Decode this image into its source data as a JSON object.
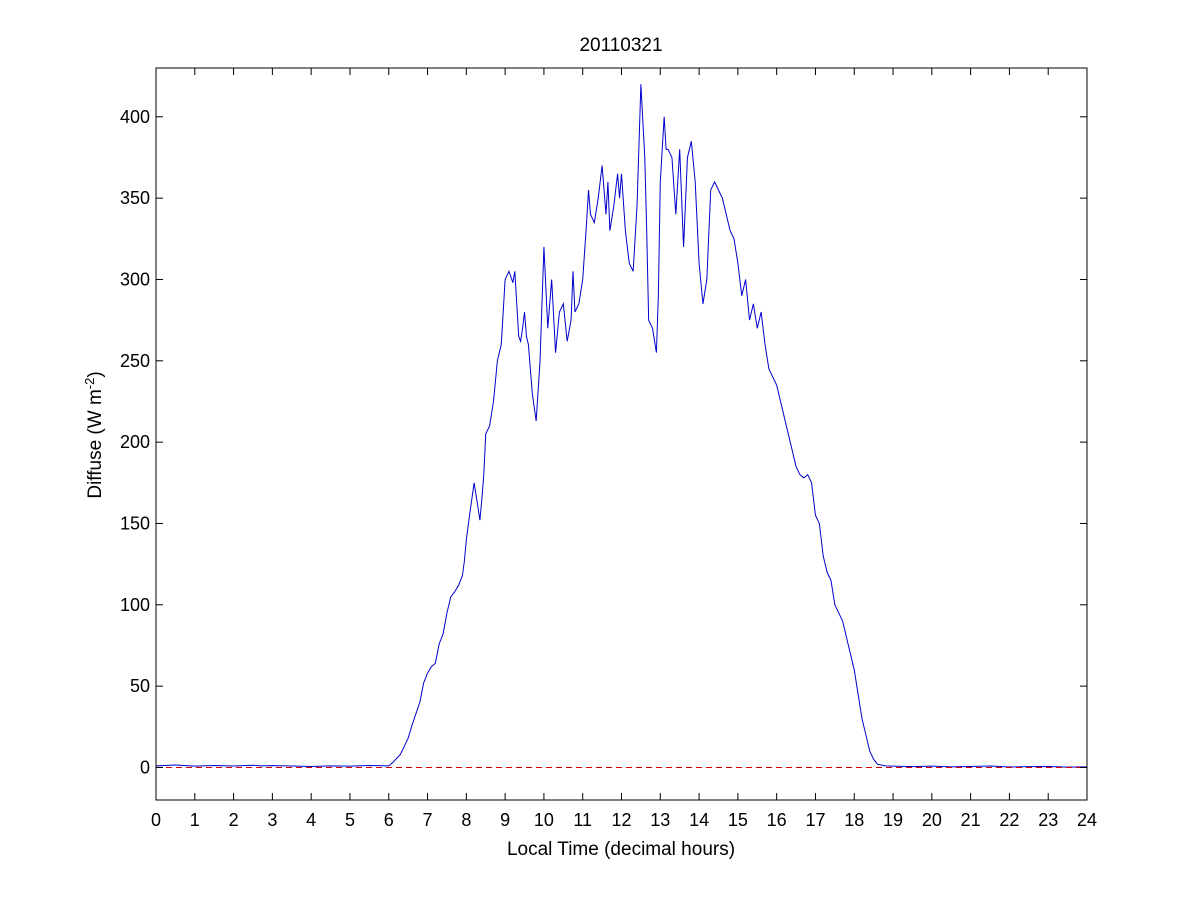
{
  "chart_data": {
    "type": "line",
    "title": "20110321",
    "xlabel": "Local Time (decimal hours)",
    "ylabel": {
      "prefix": "Diffuse (W m",
      "superscript": "-2",
      "suffix": ")"
    },
    "xlim": [
      0,
      24
    ],
    "ylim": [
      -20,
      430
    ],
    "xticks": [
      0,
      1,
      2,
      3,
      4,
      5,
      6,
      7,
      8,
      9,
      10,
      11,
      12,
      13,
      14,
      15,
      16,
      17,
      18,
      19,
      20,
      21,
      22,
      23,
      24
    ],
    "yticks": [
      0,
      50,
      100,
      150,
      200,
      250,
      300,
      350,
      400
    ],
    "grid": false,
    "legend": "none",
    "series": [
      {
        "color": "#0000cc",
        "x": [
          0,
          0.5,
          1,
          1.5,
          2,
          2.5,
          2.7,
          3,
          3.5,
          4,
          4.5,
          5,
          5.5,
          6,
          6.1,
          6.3,
          6.5,
          6.6,
          6.8,
          6.9,
          7.0,
          7.1,
          7.2,
          7.3,
          7.4,
          7.5,
          7.6,
          7.7,
          7.8,
          7.9,
          7.95,
          8.0,
          8.1,
          8.2,
          8.3,
          8.35,
          8.4,
          8.45,
          8.5,
          8.6,
          8.7,
          8.8,
          8.9,
          9.0,
          9.1,
          9.2,
          9.25,
          9.3,
          9.35,
          9.4,
          9.45,
          9.5,
          9.55,
          9.6,
          9.7,
          9.8,
          9.9,
          10.0,
          10.1,
          10.2,
          10.3,
          10.4,
          10.5,
          10.6,
          10.7,
          10.75,
          10.8,
          10.9,
          11.0,
          11.1,
          11.15,
          11.2,
          11.3,
          11.4,
          11.5,
          11.6,
          11.65,
          11.7,
          11.8,
          11.85,
          11.9,
          11.95,
          12.0,
          12.1,
          12.2,
          12.3,
          12.4,
          12.5,
          12.6,
          12.65,
          12.7,
          12.8,
          12.9,
          12.95,
          13.0,
          13.1,
          13.15,
          13.2,
          13.3,
          13.4,
          13.5,
          13.6,
          13.7,
          13.8,
          13.9,
          14.0,
          14.1,
          14.2,
          14.3,
          14.4,
          14.5,
          14.6,
          14.7,
          14.8,
          14.9,
          15.0,
          15.1,
          15.2,
          15.3,
          15.4,
          15.5,
          15.6,
          15.7,
          15.8,
          15.9,
          16.0,
          16.1,
          16.2,
          16.3,
          16.4,
          16.5,
          16.6,
          16.7,
          16.8,
          16.9,
          17.0,
          17.1,
          17.2,
          17.3,
          17.4,
          17.5,
          17.6,
          17.7,
          17.8,
          17.9,
          18.0,
          18.1,
          18.2,
          18.3,
          18.4,
          18.5,
          18.6,
          18.8,
          19,
          19.5,
          20,
          20.5,
          21,
          21.5,
          22,
          22.5,
          23,
          23.5,
          24
        ],
        "y": [
          1,
          1.5,
          0.8,
          1.2,
          0.9,
          1.4,
          1.0,
          1.1,
          0.9,
          0.6,
          1.0,
          0.8,
          1.2,
          1.0,
          3,
          8,
          18,
          26,
          40,
          52,
          58,
          62,
          64,
          76,
          82,
          95,
          105,
          108,
          112,
          118,
          127,
          140,
          158,
          175,
          160,
          152,
          165,
          180,
          205,
          210,
          225,
          250,
          260,
          300,
          305,
          298,
          305,
          285,
          265,
          262,
          270,
          280,
          265,
          260,
          230,
          213,
          250,
          320,
          270,
          300,
          255,
          280,
          285,
          262,
          275,
          305,
          280,
          285,
          300,
          335,
          355,
          340,
          335,
          350,
          370,
          340,
          360,
          330,
          345,
          355,
          365,
          350,
          365,
          330,
          310,
          305,
          345,
          420,
          375,
          330,
          275,
          270,
          255,
          290,
          360,
          400,
          380,
          380,
          375,
          340,
          380,
          320,
          375,
          385,
          360,
          310,
          285,
          300,
          355,
          360,
          355,
          350,
          340,
          330,
          325,
          310,
          290,
          300,
          275,
          285,
          270,
          280,
          260,
          245,
          240,
          235,
          225,
          215,
          205,
          195,
          185,
          180,
          178,
          180,
          175,
          155,
          150,
          130,
          120,
          115,
          100,
          95,
          90,
          80,
          70,
          60,
          45,
          30,
          20,
          10,
          5,
          2,
          1,
          0.8,
          0.5,
          0.8,
          0.4,
          0.6,
          0.9,
          0.3,
          0.5,
          0.6,
          0.2,
          0.4
        ]
      },
      {
        "color": "#cc0000",
        "style": "dashed",
        "x": [
          0,
          24
        ],
        "y": [
          0,
          0
        ]
      }
    ]
  }
}
